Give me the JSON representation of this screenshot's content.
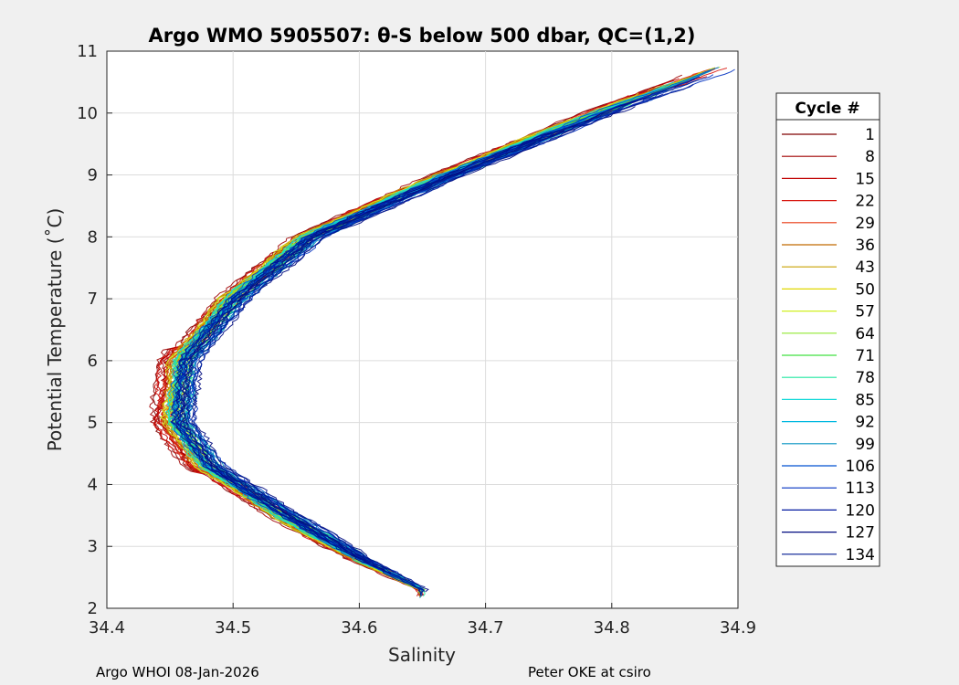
{
  "chart_data": {
    "type": "line",
    "title": "Argo WMO 5905507: θ-S below 500 dbar,  QC=(1,2)",
    "xlabel": "Salinity",
    "ylabel": "Potential Temperature (˚C)",
    "xlim": [
      34.4,
      34.9
    ],
    "ylim": [
      2,
      11
    ],
    "x_ticks": [
      "34.4",
      "34.5",
      "34.6",
      "34.7",
      "34.8",
      "34.9"
    ],
    "y_ticks": [
      "2",
      "3",
      "4",
      "5",
      "6",
      "7",
      "8",
      "9",
      "10",
      "11"
    ],
    "grid": true,
    "legend_title": "Cycle #",
    "legend_position": "outside-right",
    "series": [
      {
        "name": "1",
        "color": "#7f0000"
      },
      {
        "name": "8",
        "color": "#a00000"
      },
      {
        "name": "15",
        "color": "#c00000"
      },
      {
        "name": "22",
        "color": "#d81810"
      },
      {
        "name": "29",
        "color": "#e83a12"
      },
      {
        "name": "36",
        "color": "#c06a00"
      },
      {
        "name": "43",
        "color": "#c8a000"
      },
      {
        "name": "50",
        "color": "#e0d800"
      },
      {
        "name": "57",
        "color": "#d0f020"
      },
      {
        "name": "64",
        "color": "#90e830"
      },
      {
        "name": "71",
        "color": "#40e040"
      },
      {
        "name": "78",
        "color": "#20e8a0"
      },
      {
        "name": "85",
        "color": "#10d8d8"
      },
      {
        "name": "92",
        "color": "#00b8e0"
      },
      {
        "name": "99",
        "color": "#0090c0"
      },
      {
        "name": "106",
        "color": "#0050d0"
      },
      {
        "name": "113",
        "color": "#0030c0"
      },
      {
        "name": "120",
        "color": "#0018a0"
      },
      {
        "name": "127",
        "color": "#000a80"
      },
      {
        "name": "134",
        "color": "#001a90"
      }
    ],
    "profile_shape": {
      "theta": [
        10.75,
        10.0,
        9.0,
        8.0,
        7.0,
        6.0,
        5.0,
        4.3,
        3.5,
        2.8,
        2.3
      ],
      "salinity": [
        34.89,
        34.79,
        34.67,
        34.56,
        34.5,
        34.46,
        34.455,
        34.48,
        34.54,
        34.6,
        34.65
      ]
    }
  },
  "footer": {
    "left": "Argo WHOI 08-Jan-2026",
    "right": "Peter OKE at csiro"
  }
}
